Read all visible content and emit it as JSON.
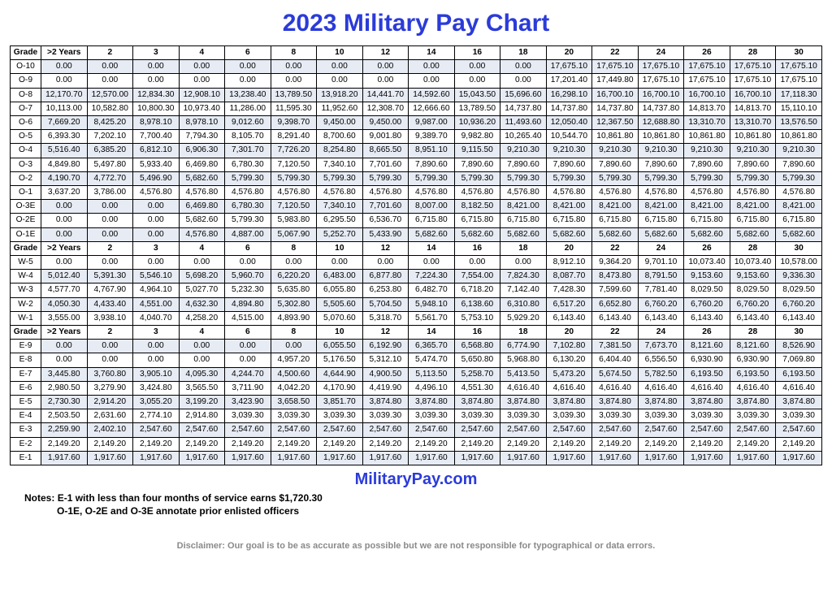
{
  "title": "2023 Military Pay Chart",
  "title_color": "#2b3bd9",
  "site_name": "MilitaryPay.com",
  "site_color": "#2b3bd9",
  "notes_label": "Notes:",
  "note1": "E-1 with less than four months of service earns $1,720.30",
  "note2": "O-1E, O-2E and O-3E annotate prior enlisted officers",
  "disclaimer": "Disclaimer: Our goal is to be as accurate as possible but we are not responsible for typographical or data errors.",
  "headers": [
    "Grade",
    ">2 Years",
    "2",
    "3",
    "4",
    "6",
    "8",
    "10",
    "12",
    "14",
    "16",
    "18",
    "20",
    "22",
    "24",
    "26",
    "28",
    "30"
  ],
  "shade_color": "#e6ebf4",
  "border_color": "#000000",
  "sections": [
    {
      "show_header": true,
      "rows": [
        {
          "grade": "O-10",
          "shade": true,
          "cells": [
            "0.00",
            "0.00",
            "0.00",
            "0.00",
            "0.00",
            "0.00",
            "0.00",
            "0.00",
            "0.00",
            "0.00",
            "0.00",
            "17,675.10",
            "17,675.10",
            "17,675.10",
            "17,675.10",
            "17,675.10",
            "17,675.10"
          ]
        },
        {
          "grade": "O-9",
          "shade": false,
          "cells": [
            "0.00",
            "0.00",
            "0.00",
            "0.00",
            "0.00",
            "0.00",
            "0.00",
            "0.00",
            "0.00",
            "0.00",
            "0.00",
            "17,201.40",
            "17,449.80",
            "17,675.10",
            "17,675.10",
            "17,675.10",
            "17,675.10"
          ]
        },
        {
          "grade": "O-8",
          "shade": true,
          "cells": [
            "12,170.70",
            "12,570.00",
            "12,834.30",
            "12,908.10",
            "13,238.40",
            "13,789.50",
            "13,918.20",
            "14,441.70",
            "14,592.60",
            "15,043.50",
            "15,696.60",
            "16,298.10",
            "16,700.10",
            "16,700.10",
            "16,700.10",
            "16,700.10",
            "17,118.30"
          ]
        },
        {
          "grade": "O-7",
          "shade": false,
          "cells": [
            "10,113.00",
            "10,582.80",
            "10,800.30",
            "10,973.40",
            "11,286.00",
            "11,595.30",
            "11,952.60",
            "12,308.70",
            "12,666.60",
            "13,789.50",
            "14,737.80",
            "14,737.80",
            "14,737.80",
            "14,737.80",
            "14,813.70",
            "14,813.70",
            "15,110.10"
          ]
        },
        {
          "grade": "O-6",
          "shade": true,
          "cells": [
            "7,669.20",
            "8,425.20",
            "8,978.10",
            "8,978.10",
            "9,012.60",
            "9,398.70",
            "9,450.00",
            "9,450.00",
            "9,987.00",
            "10,936.20",
            "11,493.60",
            "12,050.40",
            "12,367.50",
            "12,688.80",
            "13,310.70",
            "13,310.70",
            "13,576.50"
          ]
        },
        {
          "grade": "O-5",
          "shade": false,
          "cells": [
            "6,393.30",
            "7,202.10",
            "7,700.40",
            "7,794.30",
            "8,105.70",
            "8,291.40",
            "8,700.60",
            "9,001.80",
            "9,389.70",
            "9,982.80",
            "10,265.40",
            "10,544.70",
            "10,861.80",
            "10,861.80",
            "10,861.80",
            "10,861.80",
            "10,861.80"
          ]
        },
        {
          "grade": "O-4",
          "shade": true,
          "cells": [
            "5,516.40",
            "6,385.20",
            "6,812.10",
            "6,906.30",
            "7,301.70",
            "7,726.20",
            "8,254.80",
            "8,665.50",
            "8,951.10",
            "9,115.50",
            "9,210.30",
            "9,210.30",
            "9,210.30",
            "9,210.30",
            "9,210.30",
            "9,210.30",
            "9,210.30"
          ]
        },
        {
          "grade": "O-3",
          "shade": false,
          "cells": [
            "4,849.80",
            "5,497.80",
            "5,933.40",
            "6,469.80",
            "6,780.30",
            "7,120.50",
            "7,340.10",
            "7,701.60",
            "7,890.60",
            "7,890.60",
            "7,890.60",
            "7,890.60",
            "7,890.60",
            "7,890.60",
            "7,890.60",
            "7,890.60",
            "7,890.60"
          ]
        },
        {
          "grade": "O-2",
          "shade": true,
          "cells": [
            "4,190.70",
            "4,772.70",
            "5,496.90",
            "5,682.60",
            "5,799.30",
            "5,799.30",
            "5,799.30",
            "5,799.30",
            "5,799.30",
            "5,799.30",
            "5,799.30",
            "5,799.30",
            "5,799.30",
            "5,799.30",
            "5,799.30",
            "5,799.30",
            "5,799.30"
          ]
        },
        {
          "grade": "O-1",
          "shade": false,
          "cells": [
            "3,637.20",
            "3,786.00",
            "4,576.80",
            "4,576.80",
            "4,576.80",
            "4,576.80",
            "4,576.80",
            "4,576.80",
            "4,576.80",
            "4,576.80",
            "4,576.80",
            "4,576.80",
            "4,576.80",
            "4,576.80",
            "4,576.80",
            "4,576.80",
            "4,576.80"
          ]
        },
        {
          "grade": "O-3E",
          "shade": true,
          "cells": [
            "0.00",
            "0.00",
            "0.00",
            "6,469.80",
            "6,780.30",
            "7,120.50",
            "7,340.10",
            "7,701.60",
            "8,007.00",
            "8,182.50",
            "8,421.00",
            "8,421.00",
            "8,421.00",
            "8,421.00",
            "8,421.00",
            "8,421.00",
            "8,421.00"
          ]
        },
        {
          "grade": "O-2E",
          "shade": false,
          "cells": [
            "0.00",
            "0.00",
            "0.00",
            "5,682.60",
            "5,799.30",
            "5,983.80",
            "6,295.50",
            "6,536.70",
            "6,715.80",
            "6,715.80",
            "6,715.80",
            "6,715.80",
            "6,715.80",
            "6,715.80",
            "6,715.80",
            "6,715.80",
            "6,715.80"
          ]
        },
        {
          "grade": "O-1E",
          "shade": true,
          "cells": [
            "0.00",
            "0.00",
            "0.00",
            "4,576.80",
            "4,887.00",
            "5,067.90",
            "5,252.70",
            "5,433.90",
            "5,682.60",
            "5,682.60",
            "5,682.60",
            "5,682.60",
            "5,682.60",
            "5,682.60",
            "5,682.60",
            "5,682.60",
            "5,682.60"
          ]
        }
      ]
    },
    {
      "show_header": true,
      "rows": [
        {
          "grade": "W-5",
          "shade": false,
          "cells": [
            "0.00",
            "0.00",
            "0.00",
            "0.00",
            "0.00",
            "0.00",
            "0.00",
            "0.00",
            "0.00",
            "0.00",
            "0.00",
            "8,912.10",
            "9,364.20",
            "9,701.10",
            "10,073.40",
            "10,073.40",
            "10,578.00"
          ]
        },
        {
          "grade": "W-4",
          "shade": true,
          "cells": [
            "5,012.40",
            "5,391.30",
            "5,546.10",
            "5,698.20",
            "5,960.70",
            "6,220.20",
            "6,483.00",
            "6,877.80",
            "7,224.30",
            "7,554.00",
            "7,824.30",
            "8,087.70",
            "8,473.80",
            "8,791.50",
            "9,153.60",
            "9,153.60",
            "9,336.30"
          ]
        },
        {
          "grade": "W-3",
          "shade": false,
          "cells": [
            "4,577.70",
            "4,767.90",
            "4,964.10",
            "5,027.70",
            "5,232.30",
            "5,635.80",
            "6,055.80",
            "6,253.80",
            "6,482.70",
            "6,718.20",
            "7,142.40",
            "7,428.30",
            "7,599.60",
            "7,781.40",
            "8,029.50",
            "8,029.50",
            "8,029.50"
          ]
        },
        {
          "grade": "W-2",
          "shade": true,
          "cells": [
            "4,050.30",
            "4,433.40",
            "4,551.00",
            "4,632.30",
            "4,894.80",
            "5,302.80",
            "5,505.60",
            "5,704.50",
            "5,948.10",
            "6,138.60",
            "6,310.80",
            "6,517.20",
            "6,652.80",
            "6,760.20",
            "6,760.20",
            "6,760.20",
            "6,760.20"
          ]
        },
        {
          "grade": "W-1",
          "shade": false,
          "cells": [
            "3,555.00",
            "3,938.10",
            "4,040.70",
            "4,258.20",
            "4,515.00",
            "4,893.90",
            "5,070.60",
            "5,318.70",
            "5,561.70",
            "5,753.10",
            "5,929.20",
            "6,143.40",
            "6,143.40",
            "6,143.40",
            "6,143.40",
            "6,143.40",
            "6,143.40"
          ]
        }
      ]
    },
    {
      "show_header": true,
      "rows": [
        {
          "grade": "E-9",
          "shade": true,
          "cells": [
            "0.00",
            "0.00",
            "0.00",
            "0.00",
            "0.00",
            "0.00",
            "6,055.50",
            "6,192.90",
            "6,365.70",
            "6,568.80",
            "6,774.90",
            "7,102.80",
            "7,381.50",
            "7,673.70",
            "8,121.60",
            "8,121.60",
            "8,526.90"
          ]
        },
        {
          "grade": "E-8",
          "shade": false,
          "cells": [
            "0.00",
            "0.00",
            "0.00",
            "0.00",
            "0.00",
            "4,957.20",
            "5,176.50",
            "5,312.10",
            "5,474.70",
            "5,650.80",
            "5,968.80",
            "6,130.20",
            "6,404.40",
            "6,556.50",
            "6,930.90",
            "6,930.90",
            "7,069.80"
          ]
        },
        {
          "grade": "E-7",
          "shade": true,
          "cells": [
            "3,445.80",
            "3,760.80",
            "3,905.10",
            "4,095.30",
            "4,244.70",
            "4,500.60",
            "4,644.90",
            "4,900.50",
            "5,113.50",
            "5,258.70",
            "5,413.50",
            "5,473.20",
            "5,674.50",
            "5,782.50",
            "6,193.50",
            "6,193.50",
            "6,193.50"
          ]
        },
        {
          "grade": "E-6",
          "shade": false,
          "cells": [
            "2,980.50",
            "3,279.90",
            "3,424.80",
            "3,565.50",
            "3,711.90",
            "4,042.20",
            "4,170.90",
            "4,419.90",
            "4,496.10",
            "4,551.30",
            "4,616.40",
            "4,616.40",
            "4,616.40",
            "4,616.40",
            "4,616.40",
            "4,616.40",
            "4,616.40"
          ]
        },
        {
          "grade": "E-5",
          "shade": true,
          "cells": [
            "2,730.30",
            "2,914.20",
            "3,055.20",
            "3,199.20",
            "3,423.90",
            "3,658.50",
            "3,851.70",
            "3,874.80",
            "3,874.80",
            "3,874.80",
            "3,874.80",
            "3,874.80",
            "3,874.80",
            "3,874.80",
            "3,874.80",
            "3,874.80",
            "3,874.80"
          ]
        },
        {
          "grade": "E-4",
          "shade": false,
          "cells": [
            "2,503.50",
            "2,631.60",
            "2,774.10",
            "2,914.80",
            "3,039.30",
            "3,039.30",
            "3,039.30",
            "3,039.30",
            "3,039.30",
            "3,039.30",
            "3,039.30",
            "3,039.30",
            "3,039.30",
            "3,039.30",
            "3,039.30",
            "3,039.30",
            "3,039.30"
          ]
        },
        {
          "grade": "E-3",
          "shade": true,
          "cells": [
            "2,259.90",
            "2,402.10",
            "2,547.60",
            "2,547.60",
            "2,547.60",
            "2,547.60",
            "2,547.60",
            "2,547.60",
            "2,547.60",
            "2,547.60",
            "2,547.60",
            "2,547.60",
            "2,547.60",
            "2,547.60",
            "2,547.60",
            "2,547.60",
            "2,547.60"
          ]
        },
        {
          "grade": "E-2",
          "shade": false,
          "cells": [
            "2,149.20",
            "2,149.20",
            "2,149.20",
            "2,149.20",
            "2,149.20",
            "2,149.20",
            "2,149.20",
            "2,149.20",
            "2,149.20",
            "2,149.20",
            "2,149.20",
            "2,149.20",
            "2,149.20",
            "2,149.20",
            "2,149.20",
            "2,149.20",
            "2,149.20"
          ]
        },
        {
          "grade": "E-1",
          "shade": true,
          "cells": [
            "1,917.60",
            "1,917.60",
            "1,917.60",
            "1,917.60",
            "1,917.60",
            "1,917.60",
            "1,917.60",
            "1,917.60",
            "1,917.60",
            "1,917.60",
            "1,917.60",
            "1,917.60",
            "1,917.60",
            "1,917.60",
            "1,917.60",
            "1,917.60",
            "1,917.60"
          ]
        }
      ]
    }
  ]
}
